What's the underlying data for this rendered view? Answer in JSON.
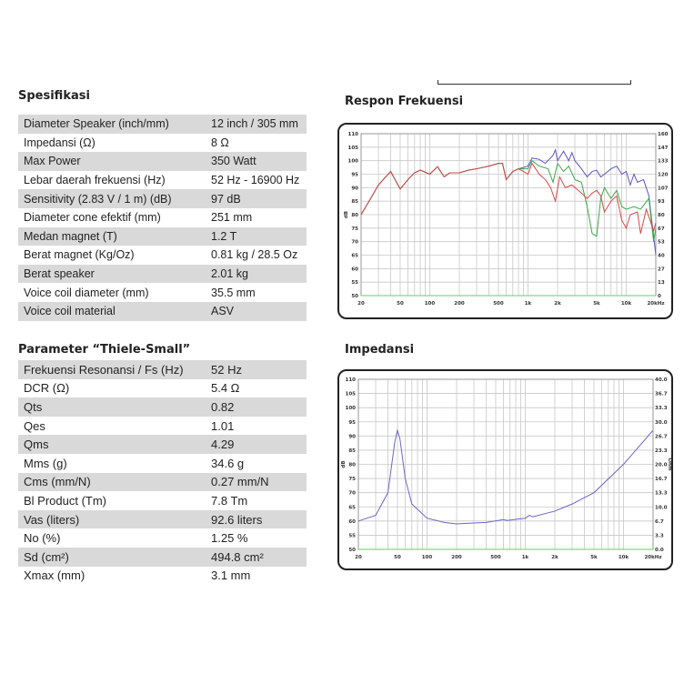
{
  "spec": {
    "title": "Spesifikasi",
    "rows": [
      [
        "Diameter Speaker (inch/mm)",
        "12 inch / 305 mm"
      ],
      [
        "Impedansi (Ω)",
        "8 Ω"
      ],
      [
        "Max Power",
        "350 Watt"
      ],
      [
        "Lebar daerah frekuensi (Hz)",
        "52 Hz - 16900 Hz"
      ],
      [
        "Sensitivity (2.83 V / 1 m) (dB)",
        "97 dB"
      ],
      [
        "Diameter cone efektif (mm)",
        "251 mm"
      ],
      [
        "Medan magnet (T)",
        "1.2 T"
      ],
      [
        "Berat magnet (Kg/Oz)",
        "0.81 kg / 28.5 Oz"
      ],
      [
        "Berat speaker",
        "2.01 kg"
      ],
      [
        "Voice coil diameter (mm)",
        "35.5 mm"
      ],
      [
        "Voice coil material",
        "ASV"
      ]
    ]
  },
  "ts": {
    "title": "Parameter “Thiele-Small”",
    "rows": [
      [
        "Frekuensi Resonansi / Fs (Hz)",
        "52 Hz"
      ],
      [
        "DCR (Ω)",
        "5.4 Ω"
      ],
      [
        "Qts",
        "0.82"
      ],
      [
        "Qes",
        "1.01"
      ],
      [
        "Qms",
        "4.29"
      ],
      [
        "Mms (g)",
        "34.6 g"
      ],
      [
        "Cms (mm/N)",
        "0.27 mm/N"
      ],
      [
        "Bl Product (Tm)",
        "7.8 Tm"
      ],
      [
        "Vas (liters)",
        "92.6 liters"
      ],
      [
        "No (%)",
        "1.25 %"
      ],
      [
        "Sd (cm²)",
        "494.8 cm²"
      ],
      [
        "Xmax (mm)",
        "3.1 mm"
      ]
    ]
  },
  "chart_data": [
    {
      "type": "line",
      "title": "Respon Frekuensi",
      "ylabel": "dB",
      "y2label": "Ohm",
      "ylim": [
        50,
        110
      ],
      "xlim": [
        20,
        20000
      ],
      "xscale": "log",
      "x_ticks": [
        "20",
        "50",
        "100",
        "200",
        "500",
        "1k",
        "2k",
        "5k",
        "10k",
        "20kHz"
      ],
      "x_tick_values": [
        20,
        50,
        100,
        200,
        500,
        1000,
        2000,
        5000,
        10000,
        20000
      ],
      "y_ticks": [
        110,
        105,
        100,
        95,
        90,
        85,
        80,
        75,
        70,
        65,
        60,
        55,
        50
      ],
      "y2_ticks": [
        "160",
        "147",
        "133",
        "120",
        "107",
        "93",
        "80",
        "67",
        "53",
        "40",
        "27",
        "13",
        "0"
      ],
      "common": [
        [
          20,
          80
        ],
        [
          25,
          86
        ],
        [
          30,
          91
        ],
        [
          40,
          96
        ],
        [
          50,
          89.5
        ],
        [
          60,
          93
        ],
        [
          70,
          95.5
        ],
        [
          80,
          96.5
        ],
        [
          100,
          95
        ],
        [
          120,
          97.8
        ],
        [
          140,
          94
        ],
        [
          160,
          95.5
        ],
        [
          200,
          95.5
        ],
        [
          250,
          96.5
        ],
        [
          300,
          97
        ],
        [
          400,
          98
        ],
        [
          500,
          99
        ],
        [
          550,
          99
        ],
        [
          600,
          93
        ],
        [
          700,
          96
        ],
        [
          800,
          97
        ]
      ],
      "series": [
        {
          "name": "blue",
          "color": "#5a55c8",
          "values": [
            [
              900,
              97.5
            ],
            [
              1000,
              98
            ],
            [
              1100,
              101
            ],
            [
              1300,
              100.5
            ],
            [
              1500,
              99
            ],
            [
              1800,
              102
            ],
            [
              1900,
              104
            ],
            [
              2000,
              100
            ],
            [
              2300,
              103.5
            ],
            [
              2600,
              100
            ],
            [
              2800,
              103
            ],
            [
              3000,
              100
            ],
            [
              3500,
              97
            ],
            [
              4000,
              94
            ],
            [
              4500,
              96
            ],
            [
              5000,
              96.5
            ],
            [
              5500,
              94
            ],
            [
              6000,
              95
            ],
            [
              7000,
              97
            ],
            [
              8000,
              98
            ],
            [
              9000,
              95
            ],
            [
              10000,
              96
            ],
            [
              11000,
              91
            ],
            [
              12000,
              95
            ],
            [
              13000,
              92
            ],
            [
              15000,
              93
            ],
            [
              17000,
              87
            ],
            [
              20000,
              65
            ]
          ]
        },
        {
          "name": "green",
          "color": "#3aa84a",
          "values": [
            [
              900,
              97
            ],
            [
              1000,
              97
            ],
            [
              1100,
              100
            ],
            [
              1300,
              98
            ],
            [
              1600,
              97
            ],
            [
              1800,
              92
            ],
            [
              2000,
              99
            ],
            [
              2300,
              96
            ],
            [
              2600,
              98
            ],
            [
              3000,
              93
            ],
            [
              3500,
              92
            ],
            [
              4000,
              83
            ],
            [
              4500,
              73
            ],
            [
              5000,
              72
            ],
            [
              5500,
              86
            ],
            [
              6000,
              90
            ],
            [
              7000,
              86
            ],
            [
              8000,
              89
            ],
            [
              9000,
              83
            ],
            [
              10000,
              82
            ],
            [
              12000,
              83
            ],
            [
              14000,
              82
            ],
            [
              17000,
              86
            ],
            [
              19000,
              70
            ],
            [
              20000,
              75
            ]
          ]
        },
        {
          "name": "red",
          "color": "#d84848",
          "values": [
            [
              900,
              96
            ],
            [
              1000,
              95
            ],
            [
              1100,
              99
            ],
            [
              1300,
              95
            ],
            [
              1500,
              93
            ],
            [
              1700,
              90
            ],
            [
              1900,
              85
            ],
            [
              2100,
              94
            ],
            [
              2400,
              90
            ],
            [
              2800,
              91
            ],
            [
              3500,
              88
            ],
            [
              4000,
              86
            ],
            [
              4500,
              88
            ],
            [
              5000,
              89
            ],
            [
              5500,
              87
            ],
            [
              6000,
              81
            ],
            [
              7000,
              85
            ],
            [
              8000,
              87
            ],
            [
              9000,
              78
            ],
            [
              10000,
              75
            ],
            [
              11000,
              80
            ],
            [
              13000,
              81
            ],
            [
              14000,
              73
            ],
            [
              16000,
              82
            ],
            [
              19000,
              74
            ],
            [
              20000,
              77
            ]
          ]
        }
      ]
    },
    {
      "type": "line",
      "title": "Impedansi",
      "ylabel": "dB",
      "y2label": "Ohm",
      "ylim": [
        50,
        110
      ],
      "xlim": [
        20,
        20000
      ],
      "xscale": "log",
      "x_ticks": [
        "20",
        "50",
        "100",
        "200",
        "500",
        "1k",
        "2k",
        "5k",
        "10k",
        "20kHz"
      ],
      "x_tick_values": [
        20,
        50,
        100,
        200,
        500,
        1000,
        2000,
        5000,
        10000,
        20000
      ],
      "y_ticks": [
        110,
        105,
        100,
        95,
        90,
        85,
        80,
        75,
        70,
        65,
        60,
        55,
        50
      ],
      "y2_ticks": [
        "40.0",
        "36.7",
        "33.3",
        "30.0",
        "26.7",
        "23.3",
        "20.0",
        "16.7",
        "13.3",
        "10.0",
        "6.7",
        "3.3",
        "0.0"
      ],
      "series": [
        {
          "name": "impedance",
          "color": "#6a66c8",
          "values": [
            [
              20,
              60
            ],
            [
              30,
              62
            ],
            [
              40,
              70
            ],
            [
              47,
              88
            ],
            [
              50,
              92
            ],
            [
              53,
              89
            ],
            [
              60,
              75
            ],
            [
              70,
              66
            ],
            [
              100,
              61
            ],
            [
              150,
              59.5
            ],
            [
              200,
              59
            ],
            [
              400,
              59.5
            ],
            [
              600,
              60.5
            ],
            [
              650,
              60.2
            ],
            [
              1000,
              61
            ],
            [
              1100,
              62
            ],
            [
              1200,
              61.5
            ],
            [
              2000,
              63.5
            ],
            [
              3000,
              66
            ],
            [
              5000,
              70
            ],
            [
              10000,
              80
            ],
            [
              20000,
              92
            ]
          ]
        }
      ]
    }
  ]
}
